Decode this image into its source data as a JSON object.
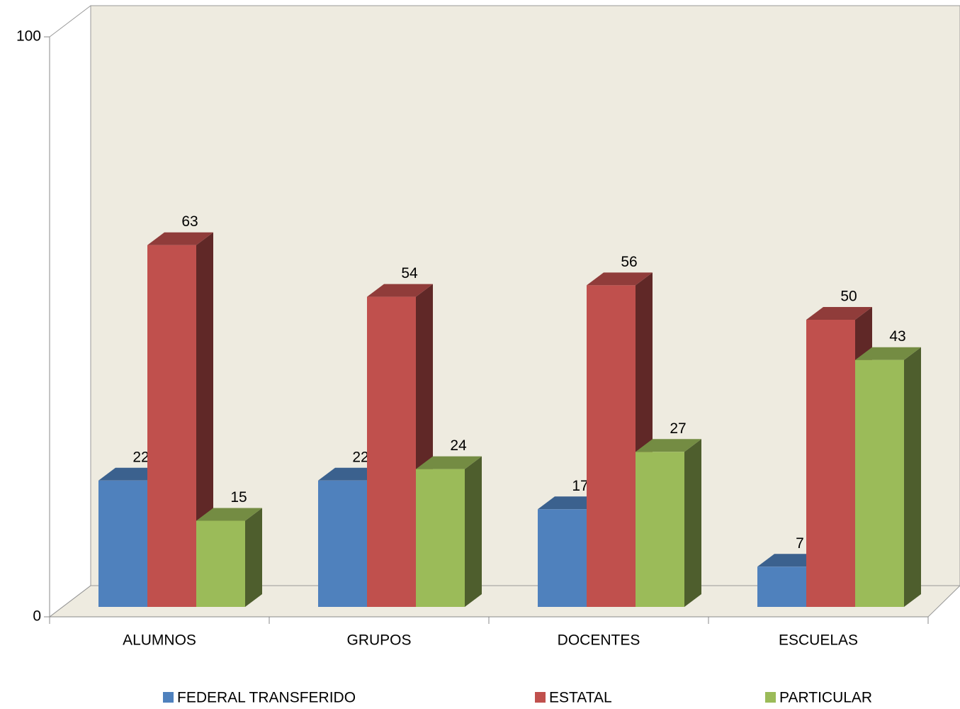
{
  "chart_data": {
    "type": "bar3d",
    "categories": [
      "ALUMNOS",
      "GRUPOS",
      "DOCENTES",
      "ESCUELAS"
    ],
    "series": [
      {
        "name": "FEDERAL TRANSFERIDO",
        "color": "#4f81bd",
        "values": [
          22,
          22,
          17,
          7
        ]
      },
      {
        "name": "ESTATAL",
        "color": "#c0504d",
        "values": [
          63,
          54,
          56,
          50
        ]
      },
      {
        "name": "PARTICULAR",
        "color": "#9bbb59",
        "values": [
          15,
          24,
          27,
          43
        ]
      }
    ],
    "ylim": [
      0,
      100
    ],
    "yticks": [
      0,
      100
    ],
    "legend": "bottom"
  }
}
